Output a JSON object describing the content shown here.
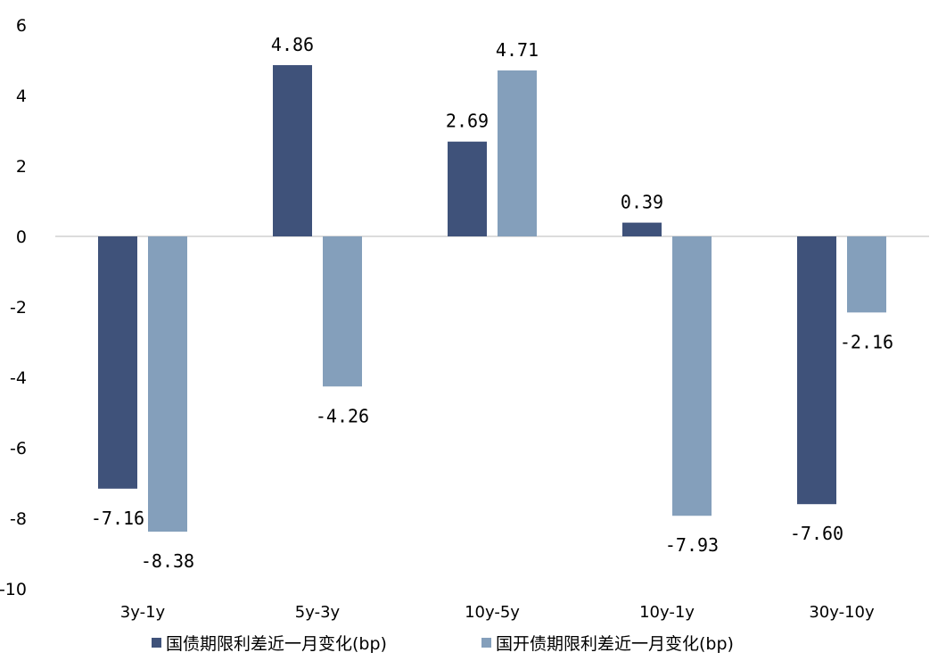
{
  "chart_data": {
    "type": "bar",
    "categories": [
      "3y-1y",
      "5y-3y",
      "10y-5y",
      "10y-1y",
      "30y-10y"
    ],
    "series": [
      {
        "name": "国债期限利差近一月变化(bp)",
        "values": [
          -7.16,
          4.86,
          2.69,
          0.39,
          -7.6
        ],
        "labels": [
          "-7.16",
          "4.86",
          "2.69",
          "0.39",
          "-7.60"
        ],
        "color": "#3f527a"
      },
      {
        "name": "国开债期限利差近一月变化(bp)",
        "values": [
          -8.38,
          -4.26,
          4.71,
          -7.93,
          -2.16
        ],
        "labels": [
          "-8.38",
          "-4.26",
          "4.71",
          "-7.93",
          "-2.16"
        ],
        "color": "#849fbb"
      }
    ],
    "ylim": [
      -10,
      6
    ],
    "yticks": [
      "6",
      "4",
      "2",
      "0",
      "-2",
      "-4",
      "-6",
      "-8",
      "-10"
    ],
    "title": "",
    "xlabel": "",
    "ylabel": "",
    "grid": false,
    "legend_position": "bottom"
  }
}
